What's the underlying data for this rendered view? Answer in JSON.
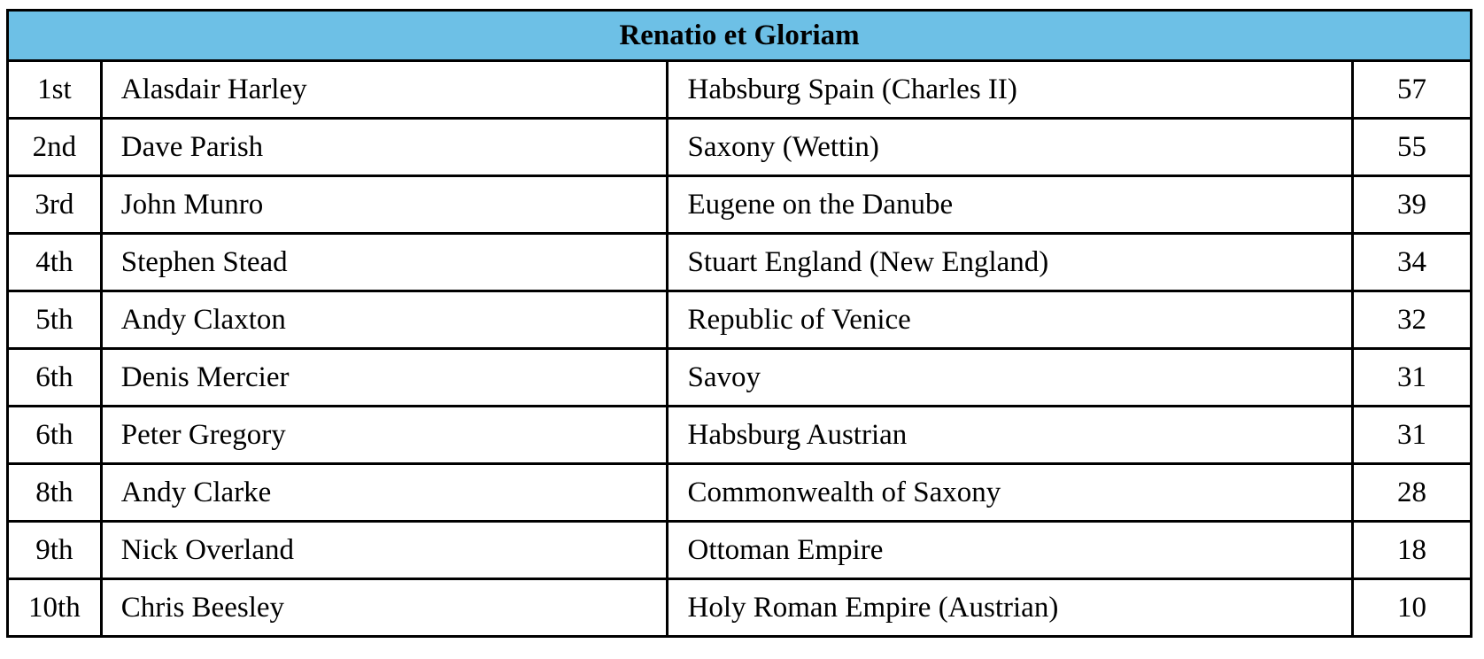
{
  "title": "Renatio et Gloriam",
  "colors": {
    "header_bg": "#6DC0E6",
    "border": "#000000",
    "text": "#000000",
    "row_bg": "#FFFFFF"
  },
  "table": {
    "rows": [
      {
        "rank": "1st",
        "player": "Alasdair Harley",
        "faction": "Habsburg Spain (Charles II)",
        "score": "57"
      },
      {
        "rank": "2nd",
        "player": "Dave Parish",
        "faction": "Saxony (Wettin)",
        "score": "55"
      },
      {
        "rank": "3rd",
        "player": "John Munro",
        "faction": "Eugene on the Danube",
        "score": "39"
      },
      {
        "rank": "4th",
        "player": "Stephen Stead",
        "faction": "Stuart England (New England)",
        "score": "34"
      },
      {
        "rank": "5th",
        "player": "Andy Claxton",
        "faction": "Republic of Venice",
        "score": "32"
      },
      {
        "rank": "6th",
        "player": "Denis Mercier",
        "faction": "Savoy",
        "score": "31"
      },
      {
        "rank": "6th",
        "player": "Peter Gregory",
        "faction": "Habsburg Austrian",
        "score": "31"
      },
      {
        "rank": "8th",
        "player": "Andy Clarke",
        "faction": "Commonwealth of Saxony",
        "score": "28"
      },
      {
        "rank": "9th",
        "player": "Nick Overland",
        "faction": "Ottoman Empire",
        "score": "18"
      },
      {
        "rank": "10th",
        "player": "Chris Beesley",
        "faction": "Holy Roman Empire (Austrian)",
        "score": "10"
      }
    ]
  }
}
